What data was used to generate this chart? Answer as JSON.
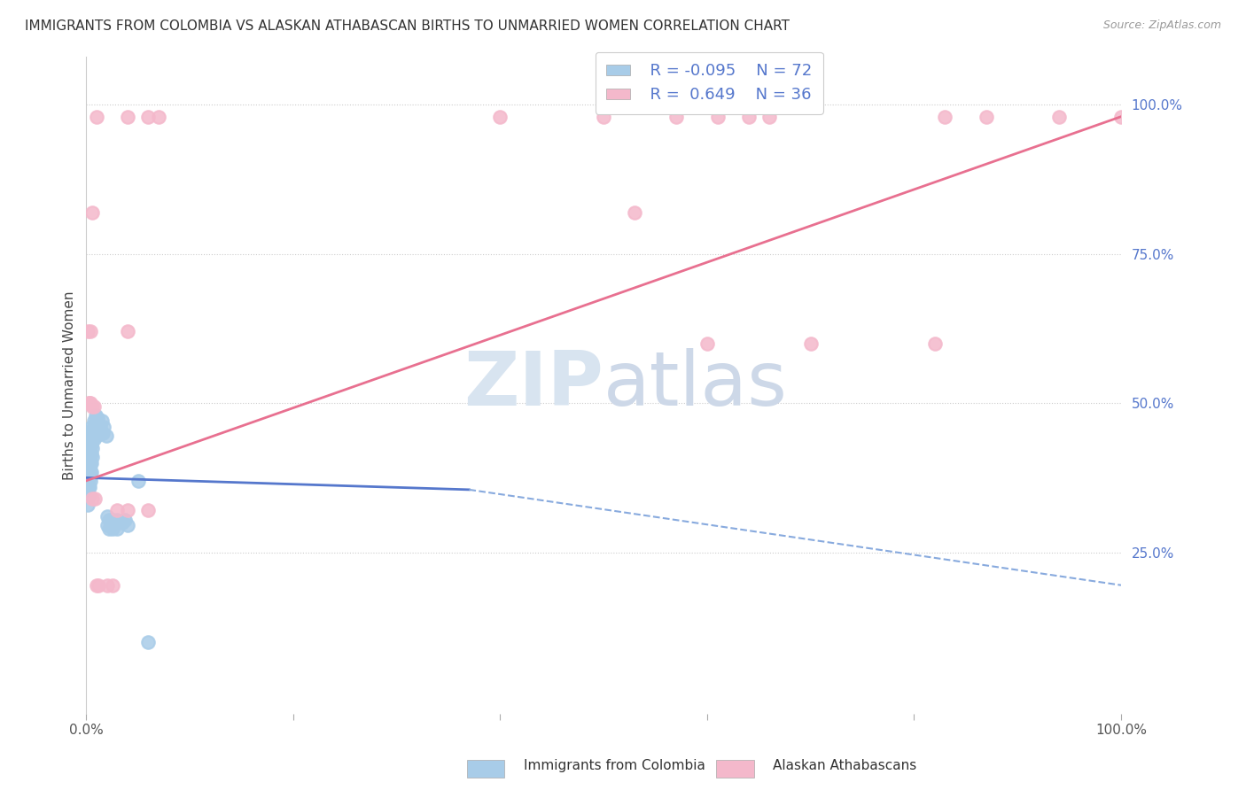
{
  "title": "IMMIGRANTS FROM COLOMBIA VS ALASKAN ATHABASCAN BIRTHS TO UNMARRIED WOMEN CORRELATION CHART",
  "source": "Source: ZipAtlas.com",
  "ylabel": "Births to Unmarried Women",
  "right_yticks": [
    "100.0%",
    "75.0%",
    "50.0%",
    "25.0%"
  ],
  "right_ytick_vals": [
    1.0,
    0.75,
    0.5,
    0.25
  ],
  "legend_blue_label": "Immigrants from Colombia",
  "legend_pink_label": "Alaskan Athabascans",
  "legend_blue_R": "R = -0.095",
  "legend_blue_N": "N = 72",
  "legend_pink_R": "R =  0.649",
  "legend_pink_N": "N = 36",
  "blue_color": "#a8cce8",
  "pink_color": "#f4b8cb",
  "blue_line_solid_color": "#5577cc",
  "blue_line_dash_color": "#88aade",
  "pink_line_color": "#e87090",
  "watermark_zip": "ZIP",
  "watermark_atlas": "atlas",
  "blue_scatter": [
    [
      0.0,
      0.395
    ],
    [
      0.0,
      0.38
    ],
    [
      0.0,
      0.36
    ],
    [
      0.0,
      0.345
    ],
    [
      0.001,
      0.42
    ],
    [
      0.001,
      0.405
    ],
    [
      0.001,
      0.39
    ],
    [
      0.001,
      0.375
    ],
    [
      0.001,
      0.36
    ],
    [
      0.001,
      0.345
    ],
    [
      0.001,
      0.33
    ],
    [
      0.002,
      0.435
    ],
    [
      0.002,
      0.42
    ],
    [
      0.002,
      0.405
    ],
    [
      0.002,
      0.39
    ],
    [
      0.002,
      0.375
    ],
    [
      0.002,
      0.36
    ],
    [
      0.002,
      0.345
    ],
    [
      0.003,
      0.45
    ],
    [
      0.003,
      0.435
    ],
    [
      0.003,
      0.42
    ],
    [
      0.003,
      0.405
    ],
    [
      0.003,
      0.39
    ],
    [
      0.003,
      0.375
    ],
    [
      0.003,
      0.36
    ],
    [
      0.004,
      0.445
    ],
    [
      0.004,
      0.43
    ],
    [
      0.004,
      0.415
    ],
    [
      0.004,
      0.4
    ],
    [
      0.004,
      0.385
    ],
    [
      0.004,
      0.37
    ],
    [
      0.005,
      0.46
    ],
    [
      0.005,
      0.445
    ],
    [
      0.005,
      0.43
    ],
    [
      0.005,
      0.415
    ],
    [
      0.005,
      0.4
    ],
    [
      0.005,
      0.385
    ],
    [
      0.006,
      0.455
    ],
    [
      0.006,
      0.44
    ],
    [
      0.006,
      0.425
    ],
    [
      0.006,
      0.41
    ],
    [
      0.007,
      0.47
    ],
    [
      0.007,
      0.455
    ],
    [
      0.007,
      0.44
    ],
    [
      0.008,
      0.465
    ],
    [
      0.008,
      0.45
    ],
    [
      0.009,
      0.48
    ],
    [
      0.009,
      0.465
    ],
    [
      0.01,
      0.46
    ],
    [
      0.01,
      0.445
    ],
    [
      0.011,
      0.475
    ],
    [
      0.011,
      0.455
    ],
    [
      0.013,
      0.46
    ],
    [
      0.014,
      0.45
    ],
    [
      0.015,
      0.47
    ],
    [
      0.016,
      0.45
    ],
    [
      0.017,
      0.46
    ],
    [
      0.019,
      0.445
    ],
    [
      0.02,
      0.31
    ],
    [
      0.02,
      0.295
    ],
    [
      0.022,
      0.305
    ],
    [
      0.022,
      0.29
    ],
    [
      0.025,
      0.305
    ],
    [
      0.025,
      0.29
    ],
    [
      0.027,
      0.3
    ],
    [
      0.03,
      0.305
    ],
    [
      0.03,
      0.29
    ],
    [
      0.035,
      0.3
    ],
    [
      0.037,
      0.305
    ],
    [
      0.04,
      0.295
    ],
    [
      0.05,
      0.37
    ],
    [
      0.06,
      0.1
    ]
  ],
  "pink_scatter": [
    [
      0.006,
      0.495
    ],
    [
      0.007,
      0.495
    ],
    [
      0.001,
      0.62
    ],
    [
      0.04,
      0.62
    ],
    [
      0.01,
      0.98
    ],
    [
      0.04,
      0.98
    ],
    [
      0.06,
      0.98
    ],
    [
      0.07,
      0.98
    ],
    [
      0.4,
      0.98
    ],
    [
      0.5,
      0.98
    ],
    [
      0.57,
      0.98
    ],
    [
      0.61,
      0.98
    ],
    [
      0.64,
      0.98
    ],
    [
      0.66,
      0.98
    ],
    [
      0.83,
      0.98
    ],
    [
      0.87,
      0.98
    ],
    [
      0.94,
      0.98
    ],
    [
      1.0,
      0.98
    ],
    [
      0.53,
      0.82
    ],
    [
      0.6,
      0.6
    ],
    [
      0.7,
      0.6
    ],
    [
      0.82,
      0.6
    ],
    [
      0.03,
      0.32
    ],
    [
      0.04,
      0.32
    ],
    [
      0.06,
      0.32
    ],
    [
      0.002,
      0.5
    ],
    [
      0.003,
      0.5
    ],
    [
      0.004,
      0.5
    ],
    [
      0.006,
      0.34
    ],
    [
      0.008,
      0.34
    ],
    [
      0.01,
      0.195
    ],
    [
      0.012,
      0.195
    ],
    [
      0.02,
      0.195
    ],
    [
      0.025,
      0.195
    ],
    [
      0.004,
      0.62
    ],
    [
      0.006,
      0.82
    ]
  ],
  "blue_line_solid": {
    "x0": 0.0,
    "y0": 0.375,
    "x1": 0.37,
    "y1": 0.355
  },
  "blue_line_dash": {
    "x0": 0.37,
    "y0": 0.355,
    "x1": 1.0,
    "y1": 0.195
  },
  "pink_line": {
    "x0": 0.0,
    "y0": 0.37,
    "x1": 1.0,
    "y1": 0.98
  },
  "xlim": [
    0.0,
    1.0
  ],
  "ylim": [
    -0.02,
    1.08
  ],
  "bg_color": "#ffffff"
}
